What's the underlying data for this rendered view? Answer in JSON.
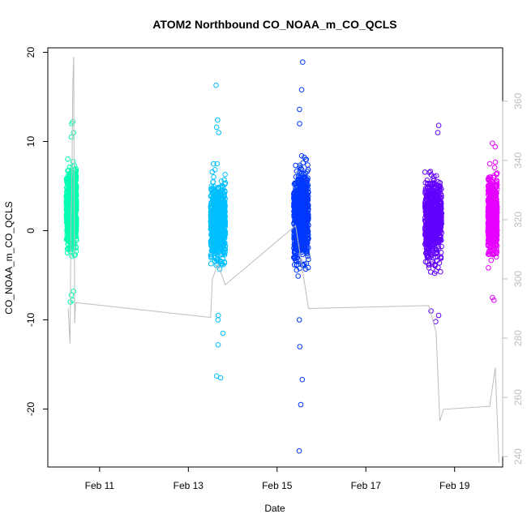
{
  "chart_data": {
    "type": "scatter",
    "title": "ATOM2 Northbound CO_NOAA_m_CO_QCLS",
    "xlabel": "Date",
    "ylabel": "CO_NOAA_m_CO_QCLS",
    "y2label": "",
    "xlim": [
      "2017-02-09T20:00",
      "2017-02-20T02:00"
    ],
    "ylim": [
      -26.5,
      20.5
    ],
    "y2lim": [
      236.5,
      378
    ],
    "x_ticks": [
      "Feb 11",
      "Feb 13",
      "Feb 15",
      "Feb 17",
      "Feb 19"
    ],
    "y_ticks": [
      -20,
      -10,
      0,
      10,
      20
    ],
    "y2_ticks": [
      240,
      260,
      280,
      300,
      320,
      340,
      360
    ],
    "grid": false,
    "legend": "none",
    "series": [
      {
        "color": "#00FFB0",
        "x_range": [
          "2017-02-10T06:00",
          "2017-02-10T11:30"
        ],
        "clusters": [
          {
            "center": 2.5,
            "spread": 3.0
          }
        ],
        "outliers": [
          12.2,
          12.0,
          11.0,
          10.5,
          -7.8,
          -8.0,
          -6.8,
          -7.2
        ]
      },
      {
        "color": "#00BFFF",
        "x_range": [
          "2017-02-13T12:00",
          "2017-02-13T20:00"
        ],
        "clusters": [
          {
            "center": 1.0,
            "spread": 3.0
          }
        ],
        "outliers": [
          16.3,
          12.4,
          11.6,
          11.0,
          -9.5,
          -10.0,
          -11.5,
          -12.8,
          -16.3,
          -16.5
        ]
      },
      {
        "color": "#0038FF",
        "x_range": [
          "2017-02-15T09:00",
          "2017-02-15T17:00"
        ],
        "clusters": [
          {
            "center": 1.5,
            "spread": 3.6
          }
        ],
        "outliers": [
          18.9,
          15.8,
          13.6,
          12.0,
          -10.0,
          -13.0,
          -16.7,
          -19.5,
          -24.7
        ]
      },
      {
        "color": "#6200FF",
        "x_range": [
          "2017-02-18T08:00",
          "2017-02-18T17:00"
        ],
        "clusters": [
          {
            "center": 1.2,
            "spread": 3.0
          }
        ],
        "outliers": [
          11.8,
          11.0,
          -9.0,
          -9.5,
          -10.2
        ]
      },
      {
        "color": "#E600FF",
        "x_range": [
          "2017-02-19T18:00",
          "2017-02-19T23:00"
        ],
        "clusters": [
          {
            "center": 1.5,
            "spread": 2.8
          }
        ],
        "outliers": [
          9.8,
          9.4,
          -7.5,
          -7.8
        ]
      }
    ],
    "secondary_line": {
      "color": "#bdbdbd",
      "axis": "right",
      "points": [
        [
          "2017-02-10T07:00",
          290
        ],
        [
          "2017-02-10T08:00",
          278
        ],
        [
          "2017-02-10T08:30",
          320
        ],
        [
          "2017-02-10T09:00",
          330
        ],
        [
          "2017-02-10T09:30",
          365
        ],
        [
          "2017-02-10T10:00",
          375
        ],
        [
          "2017-02-10T10:30",
          285
        ],
        [
          "2017-02-10T11:00",
          292
        ],
        [
          "2017-02-13T12:00",
          287
        ],
        [
          "2017-02-13T13:00",
          300
        ],
        [
          "2017-02-13T16:00",
          305
        ],
        [
          "2017-02-13T20:00",
          298
        ],
        [
          "2017-02-15T10:00",
          318
        ],
        [
          "2017-02-15T17:00",
          290
        ],
        [
          "2017-02-18T10:00",
          291
        ],
        [
          "2017-02-18T14:00",
          282
        ],
        [
          "2017-02-18T16:00",
          252
        ],
        [
          "2017-02-18T18:00",
          256
        ],
        [
          "2017-02-19T19:00",
          257
        ],
        [
          "2017-02-19T22:00",
          270
        ],
        [
          "2017-02-20T00:00",
          238
        ]
      ]
    }
  }
}
